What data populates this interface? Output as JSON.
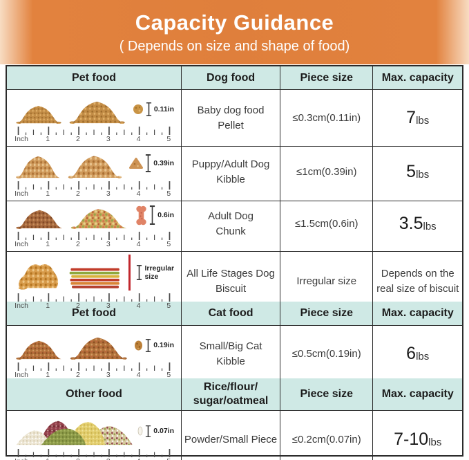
{
  "banner": {
    "title": "Capacity Guidance",
    "subtitle": "( Depends on size and shape of food)",
    "bg_color": "#df7f3c",
    "text_color": "#ffffff"
  },
  "colors": {
    "header_bg": "#cfe9e5",
    "border": "#2b2b2b",
    "irregular_line_red": "#c1272d"
  },
  "ruler": {
    "unit": "Inch",
    "marks": [
      "1",
      "2",
      "3",
      "4",
      "5"
    ]
  },
  "sections": [
    {
      "header": {
        "c1": "Pet food",
        "c2": "Dog food",
        "c3": "Piece size",
        "c4": "Max. capacity"
      },
      "rows": [
        {
          "icon": "baby-pellet-piles",
          "size_label": "0.11in",
          "food": "Baby dog food\nPellet",
          "piece": "≤0.3cm(0.11in)",
          "cap_num": "7",
          "cap_unit": "lbs"
        },
        {
          "icon": "dog-kibble-piles",
          "size_label": "0.39in",
          "food": "Puppy/Adult Dog\nKibble",
          "piece": "≤1cm(0.39in)",
          "cap_num": "5",
          "cap_unit": "lbs"
        },
        {
          "icon": "dog-chunk-piles",
          "size_label": "0.6in",
          "food": "Adult Dog\nChunk",
          "piece": "≤1.5cm(0.6in)",
          "cap_num": "3.5",
          "cap_unit": "lbs"
        },
        {
          "icon": "dog-biscuit-piles",
          "size_label": "Irregular\nsize",
          "food": "All Life Stages Dog\nBiscuit",
          "piece": "Irregular size",
          "cap_text": "Depends on the\nreal size of biscuit"
        }
      ]
    },
    {
      "header": {
        "c1": "Pet food",
        "c2": "Cat food",
        "c3": "Piece size",
        "c4": "Max. capacity"
      },
      "rows": [
        {
          "icon": "cat-kibble-piles",
          "size_label": "0.19in",
          "food": "Small/Big Cat\nKibble",
          "piece": "≤0.5cm(0.19in)",
          "cap_num": "6",
          "cap_unit": "lbs"
        }
      ]
    },
    {
      "header": {
        "c1": "Other food",
        "c2": "Rice/flour/\nsugar/oatmeal",
        "c3": "Piece size",
        "c4": "Max. capacity"
      },
      "rows": [
        {
          "icon": "grain-powder-piles",
          "size_label": "0.07in",
          "food": "Powder/Small Piece",
          "piece": "≤0.2cm(0.07in)",
          "cap_num": "7-10",
          "cap_unit": "lbs"
        }
      ]
    }
  ]
}
